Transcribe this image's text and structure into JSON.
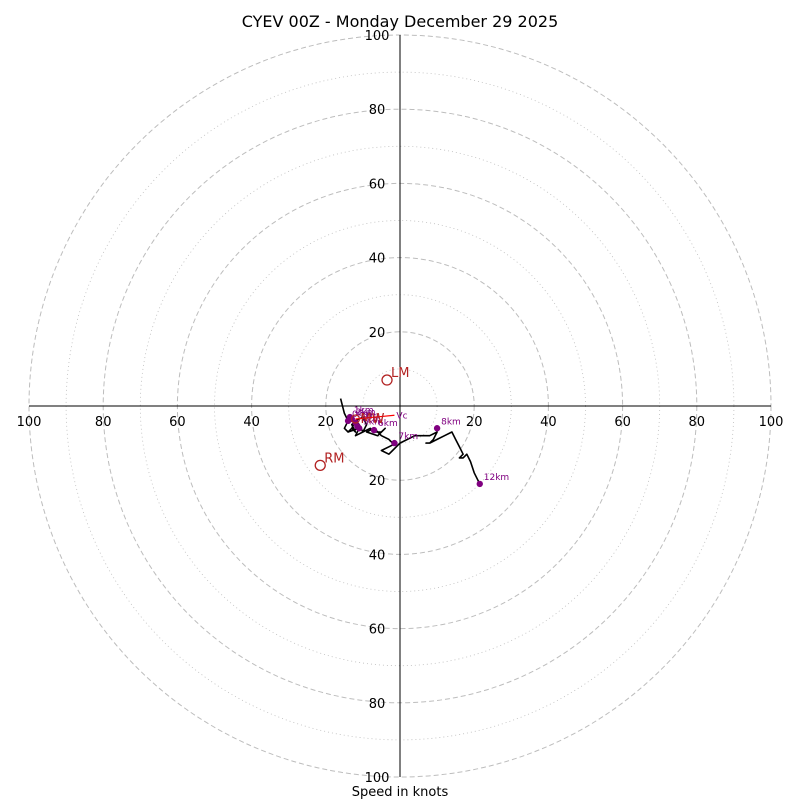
{
  "chart_data": {
    "type": "hodograph",
    "title": "CYEV 00Z - Monday December 29 2025",
    "xlabel": "Speed in knots",
    "range": [
      -100,
      100
    ],
    "major_ring_values": [
      20,
      40,
      60,
      80,
      100
    ],
    "minor_ring_values": [
      10,
      30,
      50,
      70,
      90
    ],
    "tick_labels": {
      "x_left": [
        "100",
        "80",
        "60",
        "40",
        "20"
      ],
      "x_right": [
        "20",
        "40",
        "60",
        "80",
        "100"
      ],
      "y_top": [
        "100",
        "80",
        "60",
        "40",
        "20"
      ],
      "y_bottom": [
        "20",
        "40",
        "60",
        "80",
        "100"
      ]
    },
    "wind_trace": [
      [
        -16,
        2
      ],
      [
        -15,
        -2
      ],
      [
        -14,
        -4
      ],
      [
        -15,
        -6
      ],
      [
        -14,
        -7
      ],
      [
        -13,
        -6
      ],
      [
        -12,
        -7
      ],
      [
        -13,
        -5
      ],
      [
        -12,
        -4
      ],
      [
        -10,
        -3
      ],
      [
        -9,
        -5
      ],
      [
        -10,
        -7
      ],
      [
        -11,
        -5
      ],
      [
        -12,
        -4
      ],
      [
        -13,
        -6
      ],
      [
        -14,
        -7
      ],
      [
        -11,
        -6
      ],
      [
        -12,
        -8
      ],
      [
        -10,
        -7
      ],
      [
        -8,
        -6
      ],
      [
        -7,
        -7
      ],
      [
        -5,
        -7
      ],
      [
        -4,
        -6
      ],
      [
        -6,
        -8
      ],
      [
        -9,
        -7
      ],
      [
        -7,
        -6
      ],
      [
        -5,
        -8
      ],
      [
        -3,
        -9
      ],
      [
        -2,
        -10
      ],
      [
        -1,
        -10
      ],
      [
        -3,
        -11
      ],
      [
        -5,
        -12
      ],
      [
        -3,
        -13
      ],
      [
        -2,
        -12
      ],
      [
        -1,
        -11
      ],
      [
        0,
        -10
      ],
      [
        2,
        -9
      ],
      [
        4,
        -8
      ],
      [
        6,
        -8
      ],
      [
        8,
        -8
      ],
      [
        10,
        -7
      ],
      [
        9,
        -9
      ],
      [
        8,
        -10
      ],
      [
        7,
        -10
      ],
      [
        8,
        -10
      ],
      [
        10,
        -9
      ],
      [
        12,
        -8
      ],
      [
        14,
        -7
      ],
      [
        15,
        -9
      ],
      [
        16,
        -11
      ],
      [
        17,
        -13
      ],
      [
        16,
        -14
      ],
      [
        17,
        -14
      ],
      [
        18,
        -13
      ],
      [
        19,
        -15
      ],
      [
        20,
        -18
      ],
      [
        21,
        -20
      ],
      [
        21.5,
        -21
      ]
    ],
    "height_markers": [
      {
        "label": "0km",
        "u": -14,
        "v": -4
      },
      {
        "label": "1km",
        "u": -13.5,
        "v": -3
      },
      {
        "label": "2km",
        "u": -13,
        "v": -3.5
      },
      {
        "label": "3km",
        "u": -12,
        "v": -4.5
      },
      {
        "label": "4km",
        "u": -11.5,
        "v": -5.5
      },
      {
        "label": "5km",
        "u": -11,
        "v": -6
      },
      {
        "label": "6km",
        "u": -7,
        "v": -6.5
      },
      {
        "label": "7km",
        "u": -1.5,
        "v": -10
      },
      {
        "label": "8km",
        "u": 10,
        "v": -6
      },
      {
        "label": "12km",
        "u": 21.5,
        "v": -21
      }
    ],
    "storm_motion": {
      "RM": {
        "label": "RM",
        "u": -21.5,
        "v": -16
      },
      "LM": {
        "label": "LM",
        "u": -3.5,
        "v": 7
      },
      "MW": {
        "label": "MW",
        "u": -12,
        "v": -3.5
      },
      "SRH_line_end": {
        "label": "Vc",
        "u": -1.5,
        "v": -2.5
      }
    },
    "colors": {
      "trace": "#000000",
      "height_marker": "#800080",
      "storm_marker": "#b22222",
      "shear_vector": "#ff0000",
      "rings": "#bdbdbd",
      "axes": "#000000"
    }
  }
}
